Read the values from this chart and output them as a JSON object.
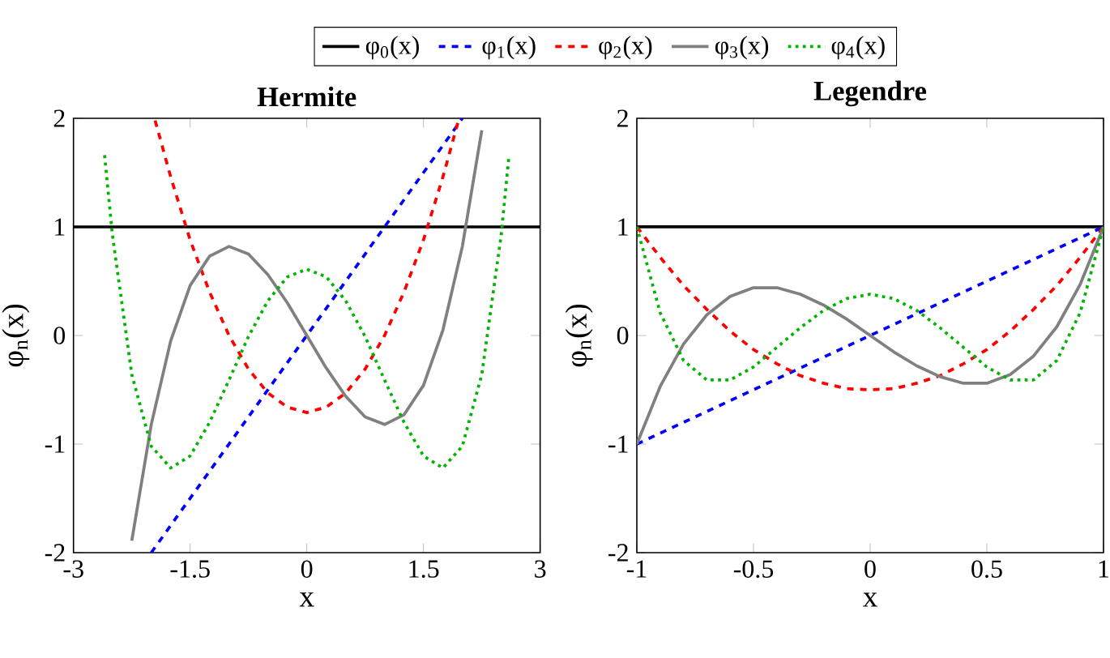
{
  "chart_data": [
    {
      "type": "line",
      "title": "Hermite",
      "xlabel": "x",
      "ylabel": "φ$_{n}$(x)",
      "xlim": [
        -3,
        3
      ],
      "ylim": [
        -2,
        2
      ],
      "xticks": [
        -3,
        -1.5,
        0,
        1.5,
        3
      ],
      "yticks": [
        -2,
        -1,
        0,
        1,
        2
      ],
      "legend": "top",
      "series": [
        {
          "name": "φ$_{0}$(x)",
          "color": "#000000",
          "line_style": "solid",
          "x": [
            -3,
            3
          ],
          "values": [
            1,
            1
          ]
        },
        {
          "name": "φ$_{1}$(x)",
          "color": "#0000ff",
          "line_style": "dashed",
          "x": [
            -2,
            2
          ],
          "values": [
            -2,
            2
          ]
        },
        {
          "name": "φ$_{2}$(x)",
          "color": "#ff0000",
          "line_style": "dashed",
          "x": [
            -1.95,
            -1.75,
            -1.5,
            -1.25,
            -1,
            -0.75,
            -0.5,
            -0.25,
            0,
            0.25,
            0.5,
            0.75,
            1,
            1.25,
            1.5,
            1.75,
            1.95
          ],
          "values": [
            1.98,
            1.46,
            0.88,
            0.4,
            0,
            -0.31,
            -0.53,
            -0.66,
            -0.71,
            -0.66,
            -0.53,
            -0.31,
            0,
            0.4,
            0.88,
            1.46,
            1.98
          ]
        },
        {
          "name": "φ$_{3}$(x)",
          "color": "#808080",
          "line_style": "solid",
          "x": [
            -2.25,
            -2,
            -1.75,
            -1.5,
            -1.25,
            -1,
            -0.75,
            -0.5,
            -0.25,
            0,
            0.25,
            0.5,
            0.75,
            1,
            1.25,
            1.5,
            1.75,
            2,
            2.25
          ],
          "values": [
            -1.89,
            -0.82,
            -0.05,
            0.46,
            0.73,
            0.82,
            0.75,
            0.56,
            0.3,
            0,
            -0.3,
            -0.56,
            -0.75,
            -0.82,
            -0.73,
            -0.46,
            0.05,
            0.82,
            1.89
          ]
        },
        {
          "name": "φ$_{4}$(x)",
          "color": "#00b400",
          "line_style": "dotted",
          "x": [
            -2.6,
            -2.5,
            -2.25,
            -2,
            -1.75,
            -1.5,
            -1.25,
            -1,
            -0.75,
            -0.5,
            -0.25,
            0,
            0.25,
            0.5,
            0.75,
            1,
            1.25,
            1.5,
            1.75,
            2,
            2.25,
            2.5,
            2.6
          ],
          "values": [
            1.66,
            0.93,
            -0.36,
            -1.02,
            -1.22,
            -1.11,
            -0.8,
            -0.41,
            -0.01,
            0.32,
            0.54,
            0.61,
            0.54,
            0.32,
            -0.01,
            -0.41,
            -0.8,
            -1.11,
            -1.22,
            -1.02,
            -0.36,
            0.93,
            1.66
          ]
        }
      ]
    },
    {
      "type": "line",
      "title": "Legendre",
      "xlabel": "x",
      "ylabel": "φ$_{n}$(x)",
      "xlim": [
        -1,
        1
      ],
      "ylim": [
        -2,
        2
      ],
      "xticks": [
        -1,
        -0.5,
        0,
        0.5,
        1
      ],
      "yticks": [
        -2,
        -1,
        0,
        1,
        2
      ],
      "series": [
        {
          "color": "#000000",
          "line_style": "solid",
          "x": [
            -1,
            1
          ],
          "values": [
            1,
            1
          ]
        },
        {
          "color": "#0000ff",
          "line_style": "dashed",
          "x": [
            -1,
            1
          ],
          "values": [
            -1,
            1
          ]
        },
        {
          "color": "#ff0000",
          "line_style": "dashed",
          "x": [
            -1,
            -0.9,
            -0.8,
            -0.7,
            -0.6,
            -0.5,
            -0.4,
            -0.3,
            -0.2,
            -0.1,
            0,
            0.1,
            0.2,
            0.3,
            0.4,
            0.5,
            0.6,
            0.7,
            0.8,
            0.9,
            1
          ],
          "values": [
            1,
            0.72,
            0.46,
            0.24,
            0.04,
            -0.13,
            -0.26,
            -0.37,
            -0.44,
            -0.49,
            -0.5,
            -0.49,
            -0.44,
            -0.37,
            -0.26,
            -0.13,
            0.04,
            0.24,
            0.46,
            0.72,
            1
          ]
        },
        {
          "color": "#808080",
          "line_style": "solid",
          "x": [
            -1,
            -0.9,
            -0.8,
            -0.7,
            -0.6,
            -0.5,
            -0.4,
            -0.3,
            -0.2,
            -0.1,
            0,
            0.1,
            0.2,
            0.3,
            0.4,
            0.5,
            0.6,
            0.7,
            0.8,
            0.9,
            1
          ],
          "values": [
            -1,
            -0.47,
            -0.08,
            0.19,
            0.36,
            0.44,
            0.44,
            0.38,
            0.28,
            0.15,
            0,
            -0.15,
            -0.28,
            -0.38,
            -0.44,
            -0.44,
            -0.36,
            -0.19,
            0.08,
            0.47,
            1
          ]
        },
        {
          "color": "#00b400",
          "line_style": "dotted",
          "x": [
            -1,
            -0.9,
            -0.8,
            -0.7,
            -0.6,
            -0.5,
            -0.4,
            -0.3,
            -0.2,
            -0.1,
            0,
            0.1,
            0.2,
            0.3,
            0.4,
            0.5,
            0.6,
            0.7,
            0.8,
            0.9,
            1
          ],
          "values": [
            1,
            0.21,
            -0.23,
            -0.41,
            -0.41,
            -0.29,
            -0.11,
            0.07,
            0.23,
            0.34,
            0.38,
            0.34,
            0.23,
            0.07,
            -0.11,
            -0.29,
            -0.41,
            -0.41,
            -0.23,
            0.21,
            1
          ]
        }
      ]
    }
  ]
}
